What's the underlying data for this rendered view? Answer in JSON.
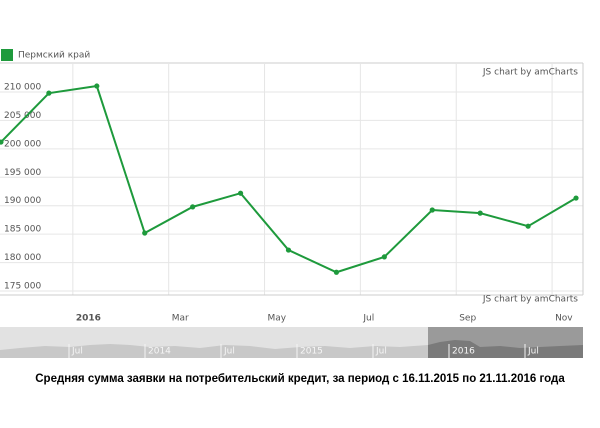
{
  "chart_data": {
    "type": "line",
    "title": "Средняя сумма заявки на потребительский кредит, за период с 16.11.2015 по 21.11.2016 года",
    "credit": "JS chart by amCharts",
    "x": [
      "2015-11",
      "2015-12",
      "2016-01",
      "2016-02",
      "2016-03",
      "2016-04",
      "2016-05",
      "2016-06",
      "2016-07",
      "2016-08",
      "2016-09",
      "2016-10",
      "2016-11"
    ],
    "series": [
      {
        "name": "Пермский край",
        "color": "#1e9a3c",
        "values": [
          201200,
          209800,
          211050,
          185200,
          189800,
          192200,
          182200,
          178300,
          181000,
          189250,
          188700,
          186400,
          191350
        ]
      }
    ],
    "xlim": [
      "2015-11",
      "2016-11"
    ],
    "xticks": [
      {
        "value": "2016-01",
        "label": "2016"
      },
      {
        "value": "2016-03",
        "label": "Mar"
      },
      {
        "value": "2016-05",
        "label": "May"
      },
      {
        "value": "2016-07",
        "label": "Jul"
      },
      {
        "value": "2016-09",
        "label": "Sep"
      },
      {
        "value": "2016-11",
        "label": "Nov"
      }
    ],
    "ylim": [
      174300,
      215100
    ],
    "yticks": [
      {
        "value": 175000,
        "label": "175 000"
      },
      {
        "value": 180000,
        "label": "180 000"
      },
      {
        "value": 185000,
        "label": "185 000"
      },
      {
        "value": 190000,
        "label": "190 000"
      },
      {
        "value": 195000,
        "label": "195 000"
      },
      {
        "value": 200000,
        "label": "200 000"
      },
      {
        "value": 205000,
        "label": "205 000"
      },
      {
        "value": 210000,
        "label": "210 000"
      }
    ],
    "grid": true,
    "legend": "top-left",
    "scrollbar_labels": [
      "Jul",
      "2014",
      "Jul",
      "2015",
      "Jul",
      "2016",
      "Jul"
    ]
  }
}
